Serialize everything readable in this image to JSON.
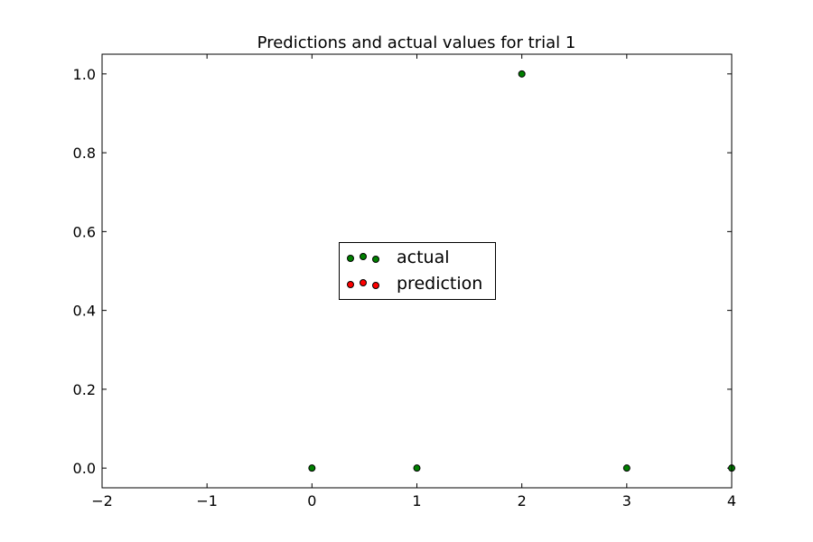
{
  "chart_data": {
    "type": "scatter",
    "title": "Predictions and actual values for trial 1",
    "xlabel": "",
    "ylabel": "",
    "xlim": [
      -2,
      4
    ],
    "ylim": [
      -0.05,
      1.05
    ],
    "x_ticks": [
      -2,
      -1,
      0,
      1,
      2,
      3,
      4
    ],
    "x_tick_labels": [
      "−2",
      "−1",
      "0",
      "1",
      "2",
      "3",
      "4"
    ],
    "y_ticks": [
      0.0,
      0.2,
      0.4,
      0.6,
      0.8,
      1.0
    ],
    "y_tick_labels": [
      "0.0",
      "0.2",
      "0.4",
      "0.6",
      "0.8",
      "1.0"
    ],
    "grid": false,
    "legend_position": "center",
    "series": [
      {
        "name": "actual",
        "color": "#008000",
        "x": [
          0,
          1,
          2,
          3,
          4
        ],
        "y": [
          0,
          0,
          1,
          0,
          0
        ]
      },
      {
        "name": "prediction",
        "color": "#ff0000",
        "x": [],
        "y": []
      }
    ]
  }
}
